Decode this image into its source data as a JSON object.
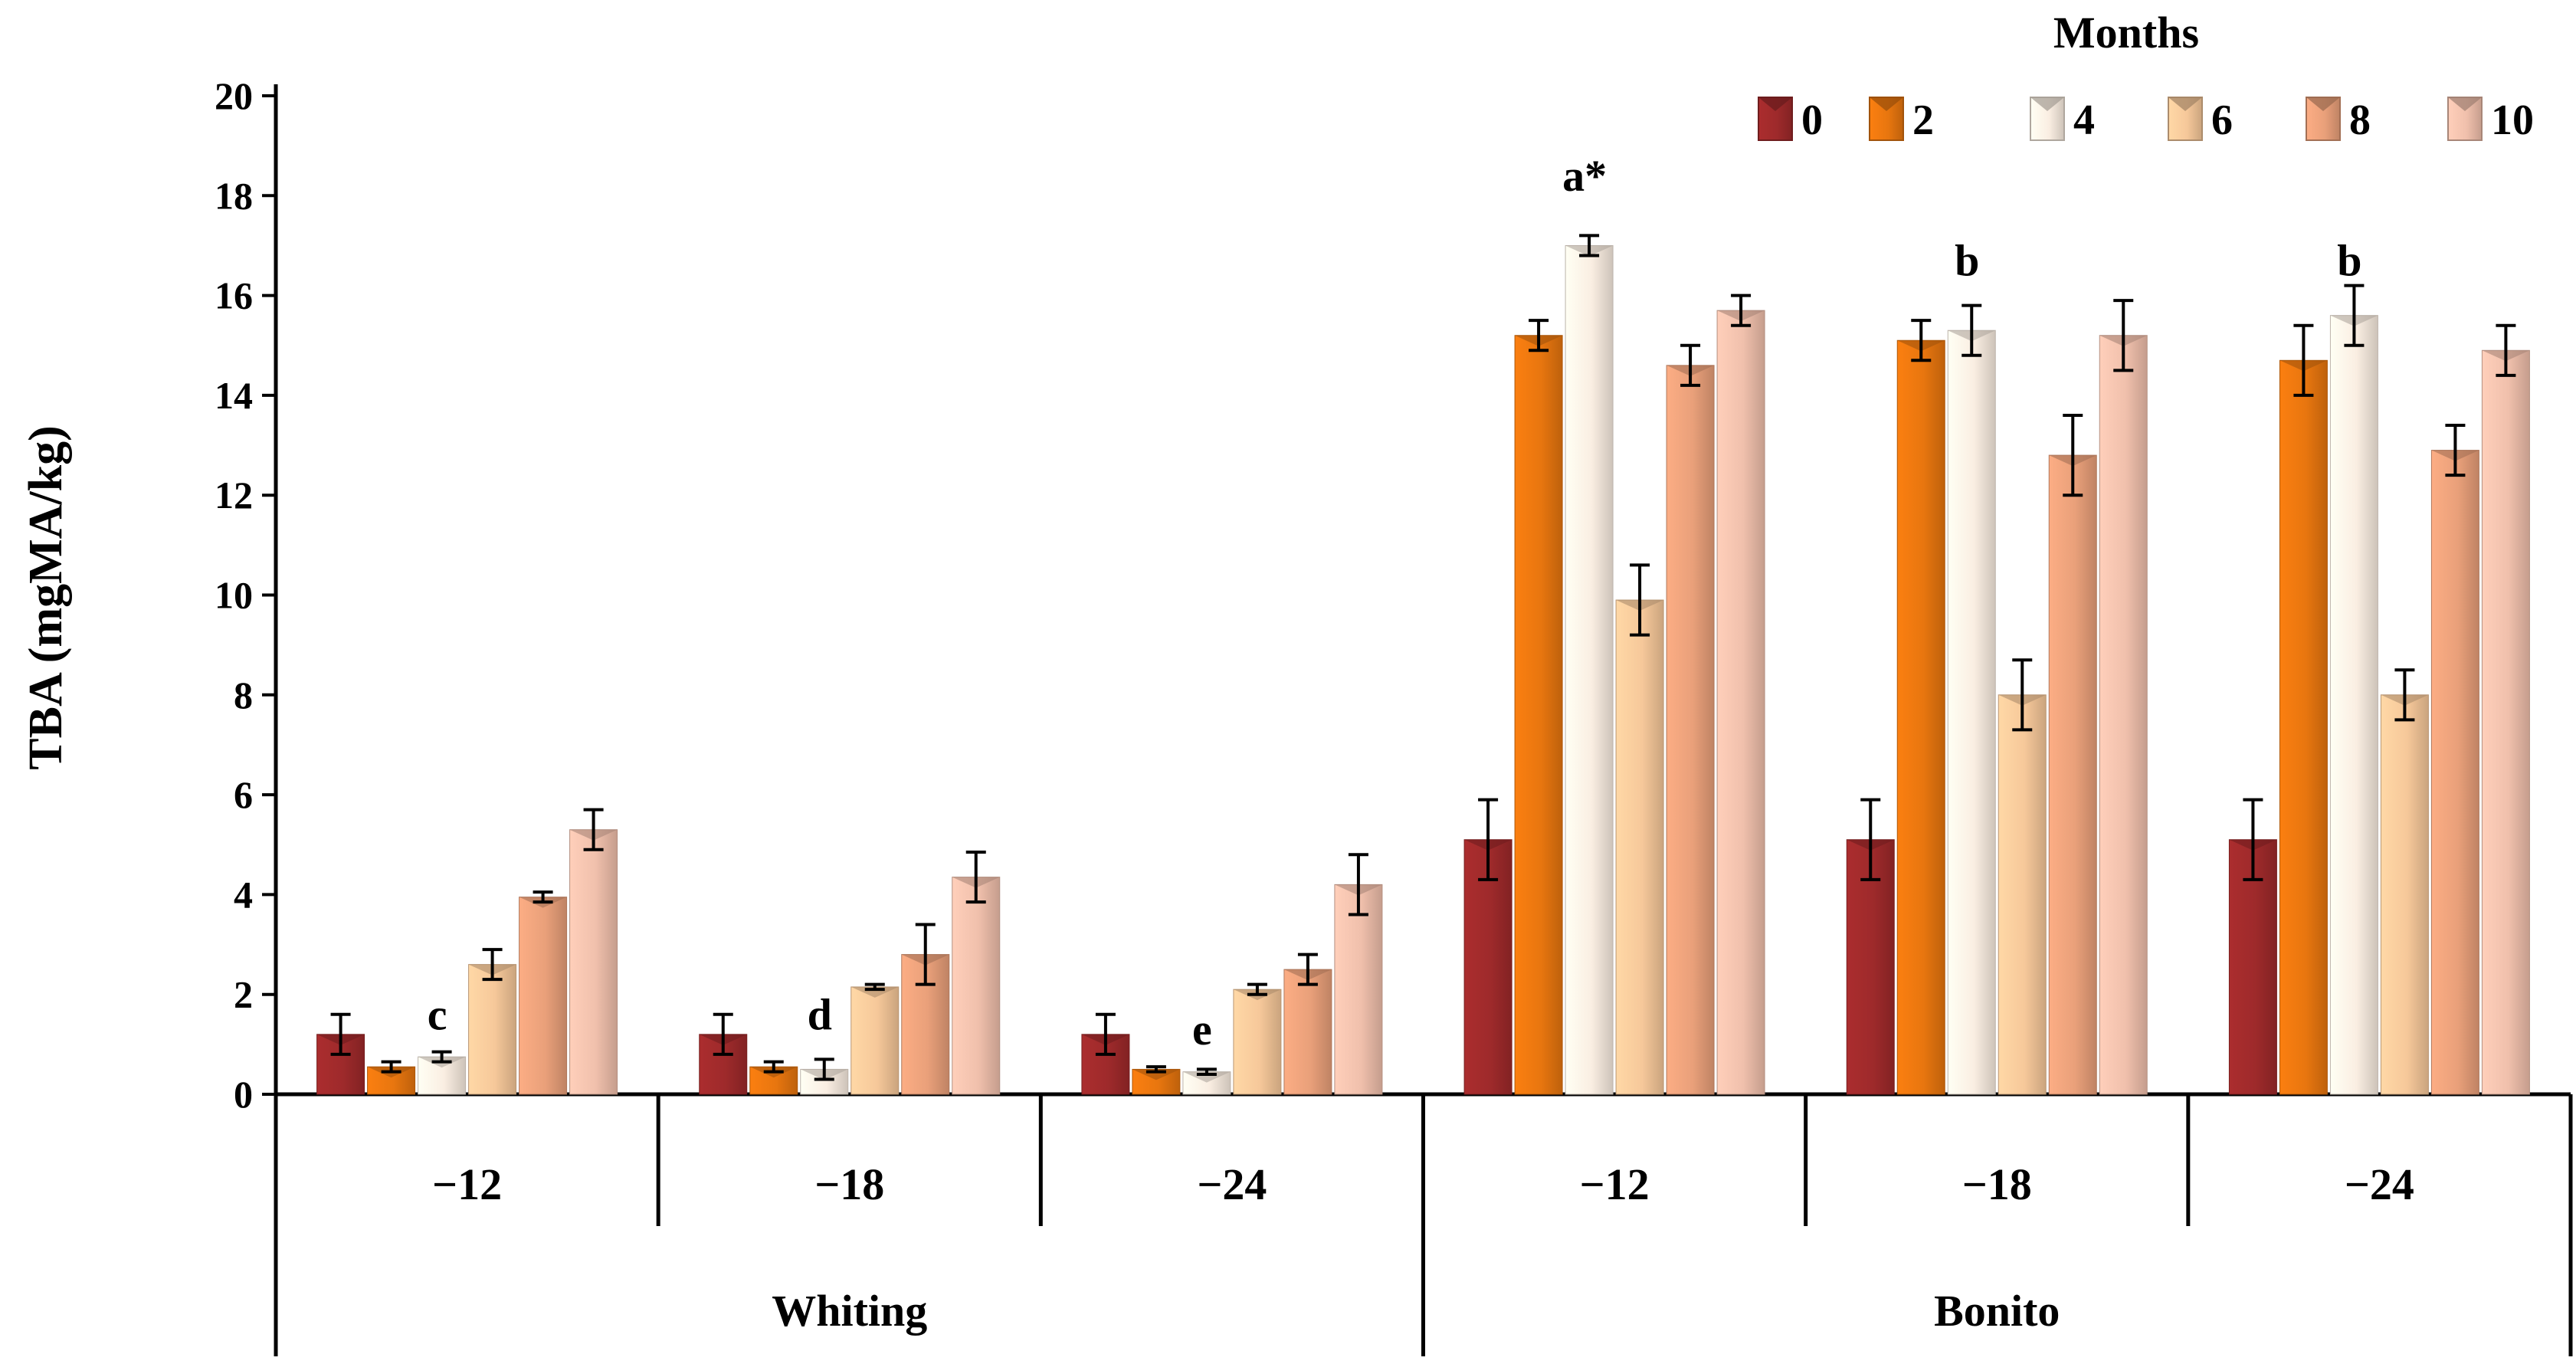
{
  "chart_data": {
    "type": "bar",
    "title": "",
    "xlabel": "",
    "ylabel": "TBA (mgMA/kg)",
    "ylim": [
      0,
      20
    ],
    "y_ticks": [
      "0",
      "2",
      "4",
      "6",
      "8",
      "10",
      "12",
      "14",
      "16",
      "18",
      "20"
    ],
    "grid": false,
    "legend": {
      "title": "Months",
      "position": "top-right"
    },
    "groups": [
      {
        "name": "Whiting",
        "categories": [
          "−12",
          "−18",
          "−24"
        ]
      },
      {
        "name": "Bonito",
        "categories": [
          "−12",
          "−18",
          "−24"
        ]
      }
    ],
    "categories": [
      "−12",
      "−18",
      "−24",
      "−12",
      "−18",
      "−24"
    ],
    "series": [
      {
        "name": "0",
        "color": "#9e2a2b",
        "values": [
          1.2,
          1.2,
          1.2,
          5.1,
          5.1,
          5.1
        ],
        "errors": [
          0.4,
          0.4,
          0.4,
          0.8,
          0.8,
          0.8
        ]
      },
      {
        "name": "2",
        "color": "#e8760f",
        "values": [
          0.55,
          0.55,
          0.5,
          15.2,
          15.1,
          14.7
        ],
        "errors": [
          0.1,
          0.1,
          0.05,
          0.3,
          0.4,
          0.7
        ]
      },
      {
        "name": "4",
        "color": "#faeee2",
        "values": [
          0.75,
          0.5,
          0.45,
          17.0,
          15.3,
          15.6
        ],
        "errors": [
          0.1,
          0.2,
          0.05,
          0.2,
          0.5,
          0.6
        ]
      },
      {
        "name": "6",
        "color": "#f6c89a",
        "values": [
          2.6,
          2.15,
          2.1,
          9.9,
          8.0,
          8.0
        ],
        "errors": [
          0.3,
          0.05,
          0.1,
          0.7,
          0.7,
          0.5
        ]
      },
      {
        "name": "8",
        "color": "#e9a07a",
        "values": [
          3.95,
          2.8,
          2.5,
          14.6,
          12.8,
          12.9
        ],
        "errors": [
          0.1,
          0.6,
          0.3,
          0.4,
          0.8,
          0.5
        ]
      },
      {
        "name": "10",
        "color": "#f0c0ac",
        "values": [
          5.3,
          4.35,
          4.2,
          15.7,
          15.2,
          14.9
        ],
        "errors": [
          0.4,
          0.5,
          0.6,
          0.3,
          0.7,
          0.5
        ]
      }
    ],
    "annotations": [
      {
        "text": "c",
        "category_index": 0,
        "value": 1.3
      },
      {
        "text": "d",
        "category_index": 1,
        "value": 1.3
      },
      {
        "text": "e",
        "category_index": 2,
        "value": 1.0
      },
      {
        "text": "a*",
        "category_index": 3,
        "value": 18.1
      },
      {
        "text": "b",
        "category_index": 4,
        "value": 16.4
      },
      {
        "text": "b",
        "category_index": 5,
        "value": 16.4
      }
    ]
  }
}
